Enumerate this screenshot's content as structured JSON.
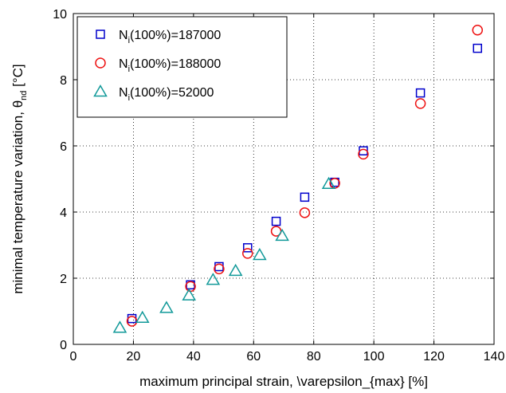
{
  "chart_data": {
    "type": "scatter",
    "xlabel": "maximum principal strain, \\varepsilon_{max} [%]",
    "ylabel": {
      "main": "minimal temperature variation, θ",
      "subscript": "nd",
      "unit": " [°C]"
    },
    "xlim": [
      0,
      140
    ],
    "ylim": [
      0,
      10
    ],
    "xticks": [
      0,
      20,
      40,
      60,
      80,
      100,
      120,
      140
    ],
    "yticks": [
      0,
      2,
      4,
      6,
      8,
      10
    ],
    "grid": true,
    "legend_position": "top-left",
    "series": [
      {
        "legend": {
          "prefix": "N",
          "subscript": "i",
          "suffix": "(100%)=187000"
        },
        "marker": "square",
        "color": "#0000cc",
        "points": [
          [
            19.5,
            0.78
          ],
          [
            39.0,
            1.8
          ],
          [
            48.5,
            2.35
          ],
          [
            58.0,
            2.92
          ],
          [
            67.5,
            3.72
          ],
          [
            77.0,
            4.45
          ],
          [
            87.0,
            4.9
          ],
          [
            96.5,
            5.85
          ],
          [
            115.5,
            7.6
          ],
          [
            134.5,
            8.95
          ]
        ]
      },
      {
        "legend": {
          "prefix": "N",
          "subscript": "i",
          "suffix": "(100%)=188000"
        },
        "marker": "circle",
        "color": "#ee1111",
        "points": [
          [
            19.5,
            0.7
          ],
          [
            39.0,
            1.75
          ],
          [
            48.5,
            2.28
          ],
          [
            58.0,
            2.75
          ],
          [
            67.5,
            3.42
          ],
          [
            77.0,
            3.98
          ],
          [
            87.0,
            4.87
          ],
          [
            96.5,
            5.75
          ],
          [
            115.5,
            7.28
          ],
          [
            134.5,
            9.5
          ]
        ]
      },
      {
        "legend": {
          "prefix": "N",
          "subscript": "i",
          "suffix": "(100%)=52000"
        },
        "marker": "triangle",
        "color": "#119999",
        "points": [
          [
            15.5,
            0.5
          ],
          [
            23.0,
            0.8
          ],
          [
            31.0,
            1.1
          ],
          [
            38.5,
            1.48
          ],
          [
            46.5,
            1.95
          ],
          [
            54.0,
            2.22
          ],
          [
            62.0,
            2.7
          ],
          [
            69.5,
            3.28
          ],
          [
            85.0,
            4.85
          ]
        ]
      }
    ]
  }
}
